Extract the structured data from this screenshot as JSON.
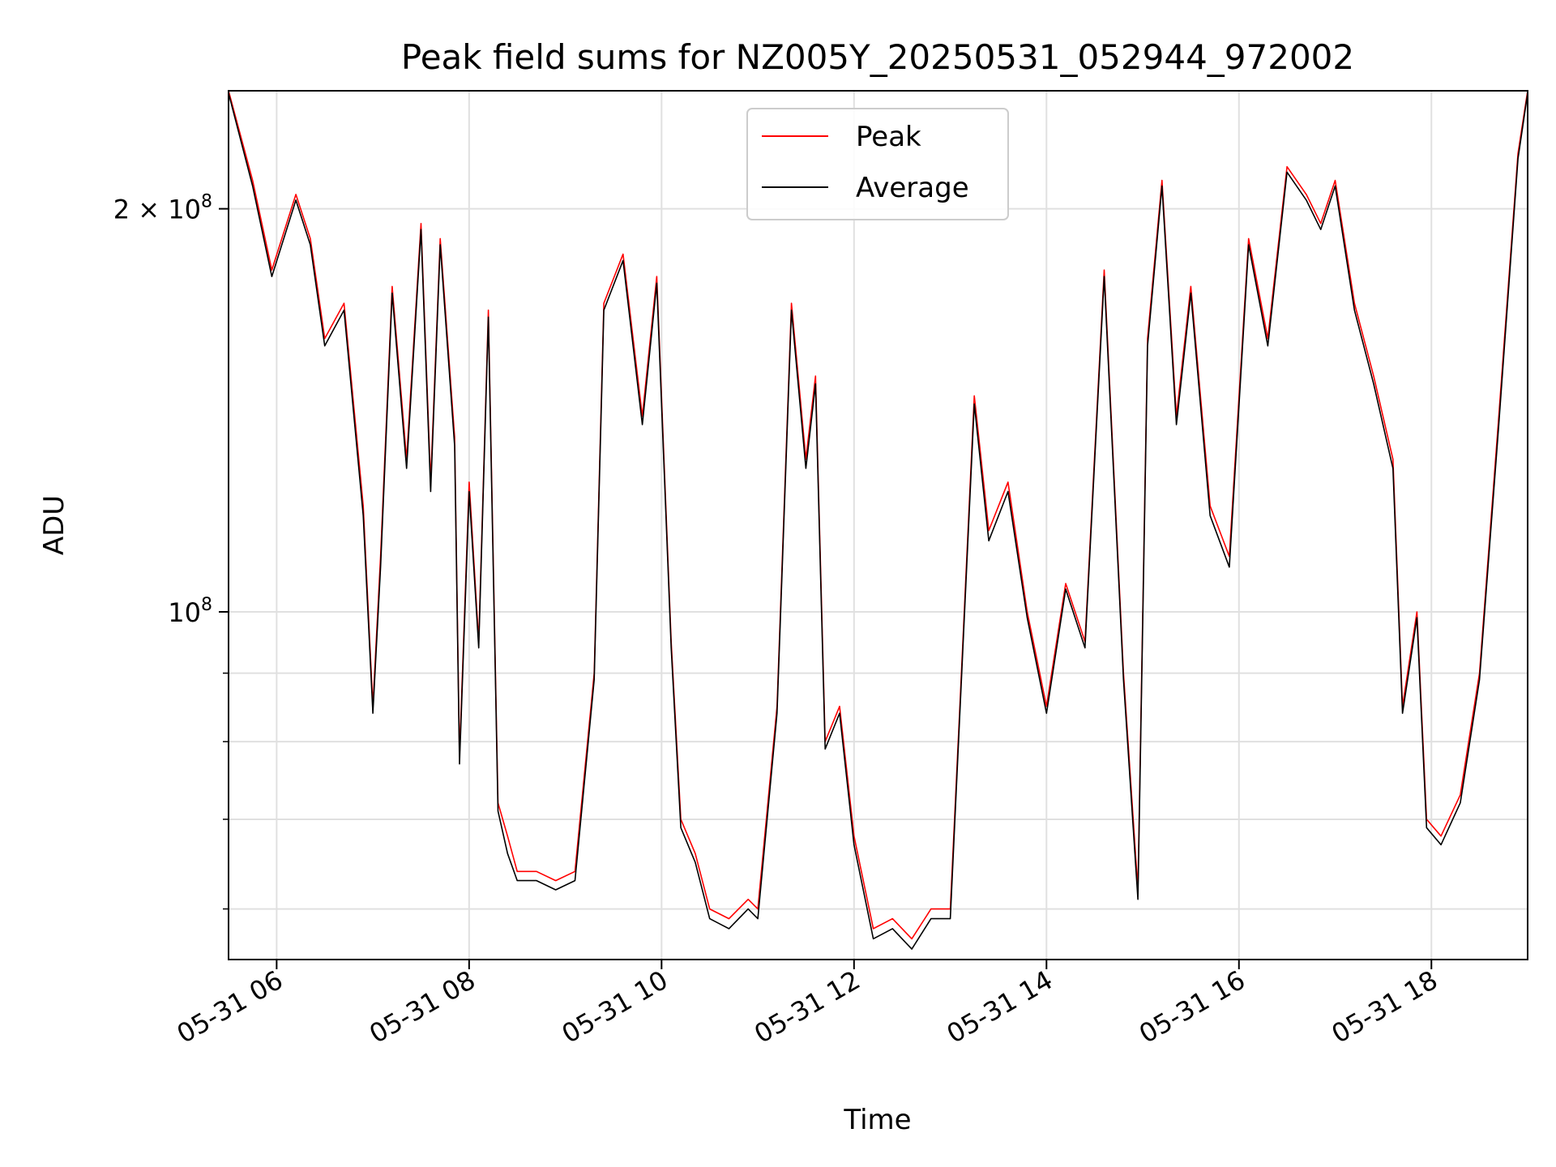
{
  "chart_data": {
    "type": "line",
    "title": "Peak field sums for NZ005Y_20250531_052944_972002",
    "xlabel": "Time",
    "ylabel": "ADU",
    "y_scale": "log",
    "ylim": [
      55000000,
      245000000
    ],
    "x_unit": "hours on 2025-05-31",
    "xlim": [
      5.5,
      19.0
    ],
    "x_ticks": [
      6,
      8,
      10,
      12,
      14,
      16,
      18
    ],
    "x_tick_labels": [
      "05-31 06",
      "05-31 08",
      "05-31 10",
      "05-31 12",
      "05-31 14",
      "05-31 16",
      "05-31 18"
    ],
    "y_tick_labels": [
      {
        "value": 200000000,
        "mantissa": "2",
        "times": "×",
        "base": "10",
        "exp": "8"
      },
      {
        "value": 100000000,
        "mantissa": "",
        "times": "",
        "base": "10",
        "exp": "8"
      }
    ],
    "y_minor_ticks": [
      60000000,
      70000000,
      80000000,
      90000000
    ],
    "grid": true,
    "legend_position": "top-center",
    "series": [
      {
        "name": "Peak",
        "color": "#ff0000",
        "x": [
          5.5,
          5.75,
          5.95,
          6.2,
          6.35,
          6.5,
          6.7,
          6.9,
          7.0,
          7.08,
          7.2,
          7.35,
          7.5,
          7.6,
          7.7,
          7.85,
          7.9,
          8.0,
          8.1,
          8.2,
          8.3,
          8.4,
          8.5,
          8.7,
          8.9,
          9.1,
          9.3,
          9.4,
          9.6,
          9.8,
          9.95,
          10.1,
          10.2,
          10.35,
          10.5,
          10.7,
          10.9,
          11.0,
          11.2,
          11.35,
          11.5,
          11.6,
          11.7,
          11.85,
          12.0,
          12.2,
          12.4,
          12.6,
          12.8,
          13.0,
          13.1,
          13.25,
          13.4,
          13.6,
          13.8,
          14.0,
          14.2,
          14.4,
          14.6,
          14.8,
          14.95,
          15.05,
          15.2,
          15.35,
          15.5,
          15.7,
          15.9,
          16.1,
          16.3,
          16.5,
          16.7,
          16.85,
          17.0,
          17.2,
          17.4,
          17.6,
          17.7,
          17.85,
          17.95,
          18.1,
          18.3,
          18.5,
          18.7,
          18.9,
          19.0
        ],
        "values": [
          245000000,
          210000000,
          180000000,
          205000000,
          190000000,
          160000000,
          170000000,
          120000000,
          85000000,
          110000000,
          175000000,
          130000000,
          195000000,
          125000000,
          190000000,
          135000000,
          78000000,
          125000000,
          95000000,
          168000000,
          72000000,
          68000000,
          64000000,
          64000000,
          63000000,
          64000000,
          90000000,
          170000000,
          185000000,
          140000000,
          178000000,
          95000000,
          70000000,
          66000000,
          60000000,
          59000000,
          61000000,
          60000000,
          85000000,
          170000000,
          130000000,
          150000000,
          80000000,
          85000000,
          68000000,
          58000000,
          59000000,
          57000000,
          60000000,
          60000000,
          85000000,
          145000000,
          115000000,
          125000000,
          100000000,
          85000000,
          105000000,
          95000000,
          180000000,
          90000000,
          62000000,
          160000000,
          210000000,
          140000000,
          175000000,
          120000000,
          110000000,
          190000000,
          160000000,
          215000000,
          205000000,
          195000000,
          210000000,
          170000000,
          150000000,
          130000000,
          85000000,
          100000000,
          70000000,
          68000000,
          73000000,
          90000000,
          140000000,
          220000000,
          245000000
        ]
      },
      {
        "name": "Average",
        "color": "#000000",
        "x": [
          5.5,
          5.75,
          5.95,
          6.2,
          6.35,
          6.5,
          6.7,
          6.9,
          7.0,
          7.08,
          7.2,
          7.35,
          7.5,
          7.6,
          7.7,
          7.85,
          7.9,
          8.0,
          8.1,
          8.2,
          8.3,
          8.4,
          8.5,
          8.7,
          8.9,
          9.1,
          9.3,
          9.4,
          9.6,
          9.8,
          9.95,
          10.1,
          10.2,
          10.35,
          10.5,
          10.7,
          10.9,
          11.0,
          11.2,
          11.35,
          11.5,
          11.6,
          11.7,
          11.85,
          12.0,
          12.2,
          12.4,
          12.6,
          12.8,
          13.0,
          13.1,
          13.25,
          13.4,
          13.6,
          13.8,
          14.0,
          14.2,
          14.4,
          14.6,
          14.8,
          14.95,
          15.05,
          15.2,
          15.35,
          15.5,
          15.7,
          15.9,
          16.1,
          16.3,
          16.5,
          16.7,
          16.85,
          17.0,
          17.2,
          17.4,
          17.6,
          17.7,
          17.85,
          17.95,
          18.1,
          18.3,
          18.5,
          18.7,
          18.9,
          19.0
        ],
        "values": [
          244000000,
          208000000,
          178000000,
          203000000,
          188000000,
          158000000,
          168000000,
          118000000,
          84000000,
          108000000,
          173000000,
          128000000,
          193000000,
          123000000,
          188000000,
          133000000,
          77000000,
          123000000,
          94000000,
          166000000,
          71000000,
          66000000,
          63000000,
          63000000,
          62000000,
          63000000,
          89000000,
          168000000,
          183000000,
          138000000,
          176000000,
          94000000,
          69000000,
          65000000,
          59000000,
          58000000,
          60000000,
          59000000,
          84000000,
          168000000,
          128000000,
          148000000,
          79000000,
          84000000,
          67000000,
          57000000,
          58000000,
          56000000,
          59000000,
          59000000,
          84000000,
          143000000,
          113000000,
          123000000,
          99000000,
          84000000,
          104000000,
          94000000,
          178000000,
          89000000,
          61000000,
          158000000,
          208000000,
          138000000,
          173000000,
          118000000,
          108000000,
          188000000,
          158000000,
          213000000,
          203000000,
          193000000,
          208000000,
          168000000,
          148000000,
          128000000,
          84000000,
          99000000,
          69000000,
          67000000,
          72000000,
          89000000,
          138000000,
          218000000,
          244000000
        ]
      }
    ]
  }
}
